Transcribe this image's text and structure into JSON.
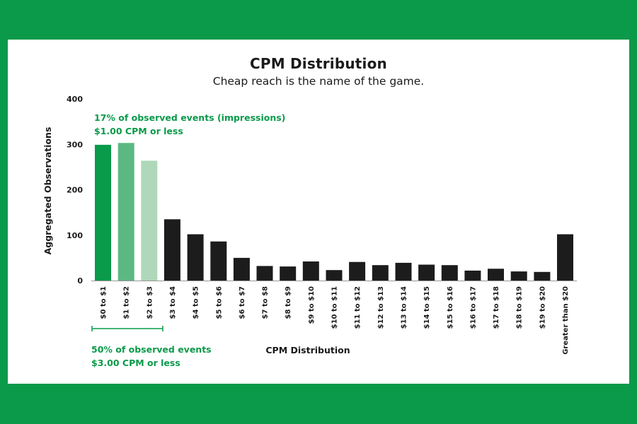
{
  "colors": {
    "border": "#0a9a4a",
    "panel": "#ffffff",
    "annotation": "#0a9a4a",
    "bar_default": "#1c1c1c",
    "axis": "#999999",
    "text": "#1a1a1a"
  },
  "chart_data": {
    "type": "bar",
    "title": "CPM Distribution",
    "subtitle": "Cheap reach is the name of the game.",
    "xlabel": "CPM Distribution",
    "ylabel": "Aggregated Observations",
    "ylim": [
      0,
      400
    ],
    "yticks": [
      0,
      100,
      200,
      300,
      400
    ],
    "grid": false,
    "legend": "none",
    "categories": [
      "$0 to $1",
      "$1 to $2",
      "$2 to $3",
      "$3 to $4",
      "$4 to $5",
      "$5 to $6",
      "$6 to $7",
      "$7 to $8",
      "$8 to $9",
      "$9 to $10",
      "$10 to $11",
      "$11 to $12",
      "$12 to $13",
      "$13 to $14",
      "$14 to $15",
      "$15 to $16",
      "$16 to $17",
      "$17 to $18",
      "$18 to $19",
      "$19 to $20",
      "Greater than $20"
    ],
    "values": [
      299,
      303,
      264,
      135,
      102,
      86,
      50,
      32,
      31,
      42,
      23,
      41,
      34,
      39,
      35,
      34,
      22,
      26,
      20,
      19,
      102
    ],
    "bar_colors": [
      "#0a9a4a",
      "#5cb883",
      "#aed8b9",
      "#1c1c1c",
      "#1c1c1c",
      "#1c1c1c",
      "#1c1c1c",
      "#1c1c1c",
      "#1c1c1c",
      "#1c1c1c",
      "#1c1c1c",
      "#1c1c1c",
      "#1c1c1c",
      "#1c1c1c",
      "#1c1c1c",
      "#1c1c1c",
      "#1c1c1c",
      "#1c1c1c",
      "#1c1c1c",
      "#1c1c1c",
      "#1c1c1c"
    ],
    "annotations": {
      "top": {
        "line1": "17% of observed events (impressions)",
        "line2": "$1.00 CPM or less"
      },
      "bottom": {
        "line1": "50% of observed events",
        "line2": "$3.00 CPM or less",
        "bracket_span": [
          "$0 to $1",
          "$2 to $3"
        ]
      }
    }
  }
}
